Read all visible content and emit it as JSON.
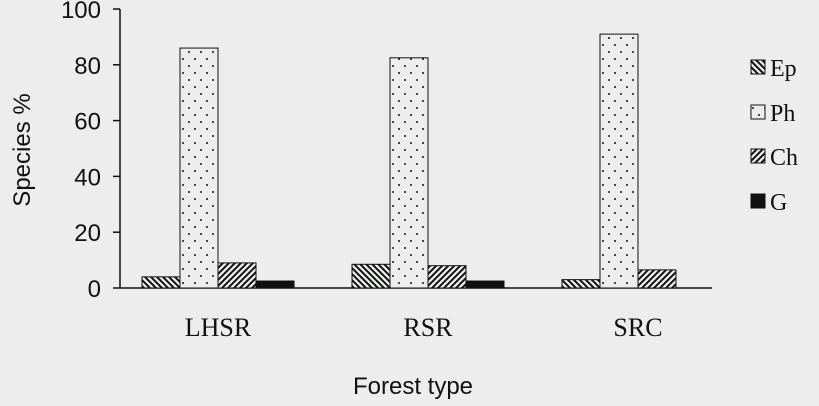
{
  "chart_data": {
    "type": "bar",
    "title": "",
    "xlabel": "Forest type",
    "ylabel": "Species %",
    "ylim": [
      0,
      100
    ],
    "yticks": [
      0,
      20,
      40,
      60,
      80,
      100
    ],
    "categories": [
      "LHSR",
      "RSR",
      "SRC"
    ],
    "series": [
      {
        "name": "Ep",
        "pattern": "backslash-hatch",
        "values": [
          4,
          8.5,
          3
        ]
      },
      {
        "name": "Ph",
        "pattern": "dots",
        "values": [
          86,
          82.5,
          91
        ]
      },
      {
        "name": "Ch",
        "pattern": "slash-hatch",
        "values": [
          9,
          8,
          6.5
        ]
      },
      {
        "name": "G",
        "pattern": "solid",
        "values": [
          2.5,
          2.5,
          0
        ]
      }
    ],
    "legend_position": "right",
    "grid": false,
    "colors": {
      "ink": "#111111",
      "background": "#ecedec"
    }
  }
}
